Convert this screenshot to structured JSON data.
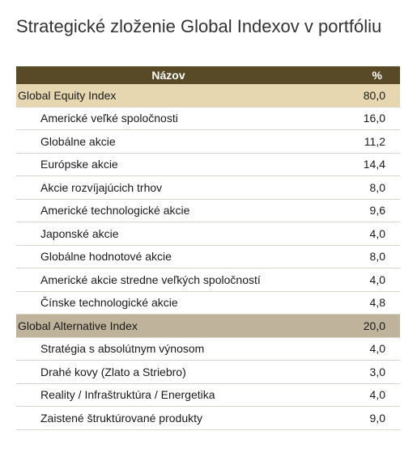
{
  "title": "Strategické zloženie Global Indexov v portfóliu",
  "table": {
    "headers": {
      "name": "Názov",
      "percent": "%"
    },
    "groups": [
      {
        "name": "Global Equity Index",
        "value": "80,0",
        "items": [
          {
            "name": "Americké veľké spoločnosti",
            "value": "16,0"
          },
          {
            "name": "Globálne akcie",
            "value": "11,2"
          },
          {
            "name": "Európske akcie",
            "value": "14,4"
          },
          {
            "name": "Akcie rozvíjajúcich trhov",
            "value": "8,0"
          },
          {
            "name": "Americké technologické akcie",
            "value": "9,6"
          },
          {
            "name": "Japonské akcie",
            "value": "4,0"
          },
          {
            "name": "Globálne hodnotové akcie",
            "value": "8,0"
          },
          {
            "name": "Americké akcie stredne veľkých spoločností",
            "value": "4,0"
          },
          {
            "name": "Čínske technologické akcie",
            "value": "4,8"
          }
        ]
      },
      {
        "name": "Global Alternative Index",
        "value": "20,0",
        "items": [
          {
            "name": "Stratégia s absolútnym výnosom",
            "value": "4,0"
          },
          {
            "name": "Drahé kovy (Zlato a Striebro)",
            "value": "3,0"
          },
          {
            "name": "Reality / Infraštruktúra / Energetika",
            "value": "4,0"
          },
          {
            "name": "Zaistené štruktúrované produkty",
            "value": "9,0"
          }
        ]
      }
    ]
  },
  "colors": {
    "header_bg": "#584a26",
    "equity_group_bg": "#e6d7b0",
    "alternative_group_bg": "#bfb39b"
  }
}
